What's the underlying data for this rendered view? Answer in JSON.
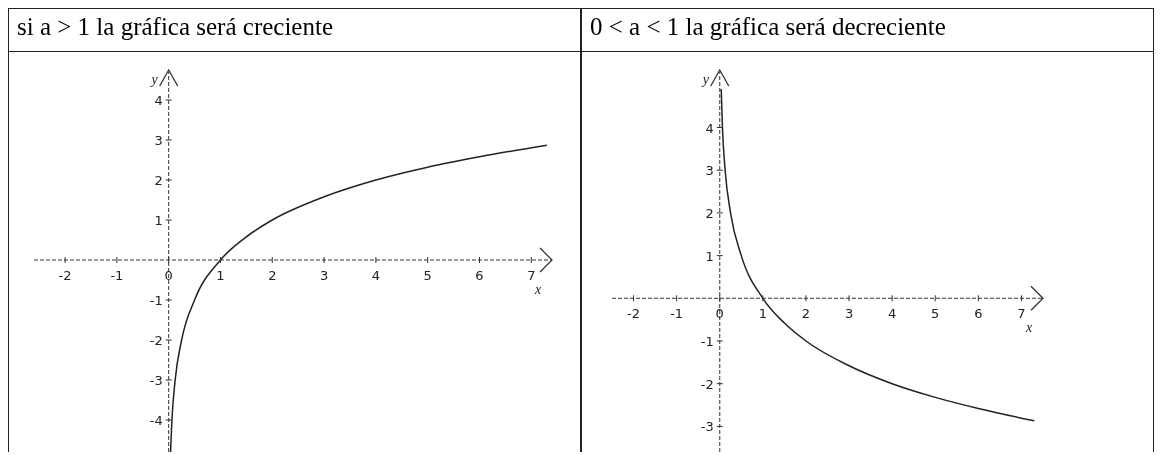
{
  "chart_data": [
    {
      "type": "line",
      "title": "si a > 1 la gráfica será creciente",
      "xlabel": "x",
      "ylabel": "y",
      "x": [
        0.036,
        0.0625,
        0.125,
        0.25,
        0.5,
        1,
        1.5,
        2,
        3,
        4,
        5,
        6,
        7.3
      ],
      "series": [
        {
          "color": "#222222",
          "values": [
            -4.8,
            -4,
            -3,
            -2,
            -1,
            0,
            0.58,
            1,
            1.58,
            2,
            2.32,
            2.58,
            2.87
          ]
        }
      ],
      "xlim": [
        -2.6,
        7.4
      ],
      "ylim": [
        -4.8,
        4.7
      ],
      "xticks": [
        -2,
        -1,
        0,
        1,
        2,
        3,
        4,
        5,
        6,
        7
      ],
      "yticks": [
        -4,
        -3,
        -2,
        -1,
        1,
        2,
        3,
        4
      ],
      "legend": false,
      "marker": "none",
      "line_style": "solid"
    },
    {
      "type": "line",
      "title": "0 < a < 1 la gráfica será decreciente",
      "xlabel": "x",
      "ylabel": "y",
      "x": [
        0.034,
        0.0625,
        0.125,
        0.25,
        0.5,
        1,
        1.5,
        2,
        3,
        4,
        5,
        6,
        7.3
      ],
      "series": [
        {
          "color": "#222222",
          "values": [
            4.9,
            4,
            3,
            2,
            1,
            0,
            -0.58,
            -1,
            -1.58,
            -2,
            -2.32,
            -2.58,
            -2.87
          ]
        }
      ],
      "xlim": [
        -2.5,
        7.5
      ],
      "ylim": [
        -3.6,
        5.3
      ],
      "xticks": [
        -2,
        -1,
        0,
        1,
        2,
        3,
        4,
        5,
        6,
        7
      ],
      "yticks": [
        -3,
        -2,
        -1,
        1,
        2,
        3,
        4
      ],
      "legend": false,
      "marker": "none",
      "line_style": "solid"
    }
  ]
}
